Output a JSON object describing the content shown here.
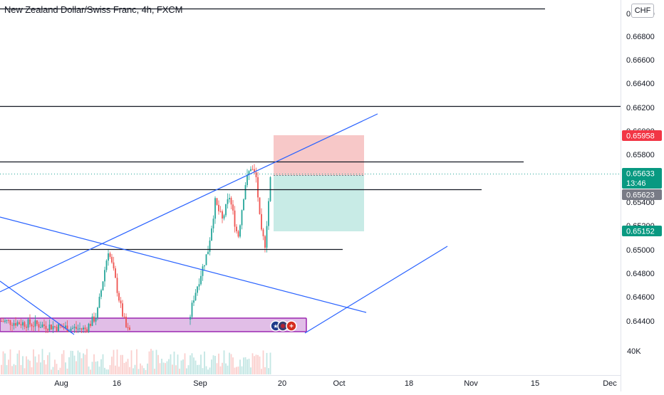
{
  "title": "New Zealand Dollar/Swiss Franc, 4h, FXCM",
  "currency": "CHF",
  "colors": {
    "up": "#26a69a",
    "down": "#ef5350",
    "trendline": "#2962ff",
    "hline": "#131722",
    "zone_fill": "#e1bee7",
    "zone_border": "#9c27b0",
    "stop_zone": "#f7c8c8",
    "target_zone": "#c8ebe6",
    "badge_red": "#f23645",
    "badge_green": "#089981",
    "badge_gray": "#787b86",
    "badge_blue": "#2962ff"
  },
  "chart_data": {
    "type": "candlestick",
    "title": "New Zealand Dollar/Swiss Franc, 4h, FXCM",
    "y_ticks": [
      "0.67000",
      "0.66800",
      "0.66600",
      "0.66400",
      "0.66200",
      "0.66000",
      "0.65800",
      "0.65600",
      "0.65400",
      "0.65200",
      "0.65000",
      "0.64800",
      "0.64600",
      "0.64400"
    ],
    "x_ticks": [
      "Aug",
      "16",
      "Sep",
      "20",
      "Oct",
      "18",
      "Nov",
      "15",
      "Dec"
    ],
    "volume_label": "40K",
    "horizontal_levels": [
      0.6702,
      0.662,
      0.6575,
      0.655,
      0.6502
    ],
    "price_labels": [
      {
        "value": "0.65958",
        "kind": "stop"
      },
      {
        "value": "0.65633",
        "kind": "current",
        "countdown": "13:46"
      },
      {
        "value": "0.65623",
        "kind": "previous"
      },
      {
        "value": "0.65152",
        "kind": "target"
      }
    ],
    "position": {
      "type": "short",
      "entry": 0.65633,
      "stop": 0.65958,
      "target": 0.65152
    },
    "demand_zone": {
      "from": 0.6432,
      "to": 0.6442
    },
    "events": [
      "NZD",
      "USD",
      "CHF"
    ]
  }
}
